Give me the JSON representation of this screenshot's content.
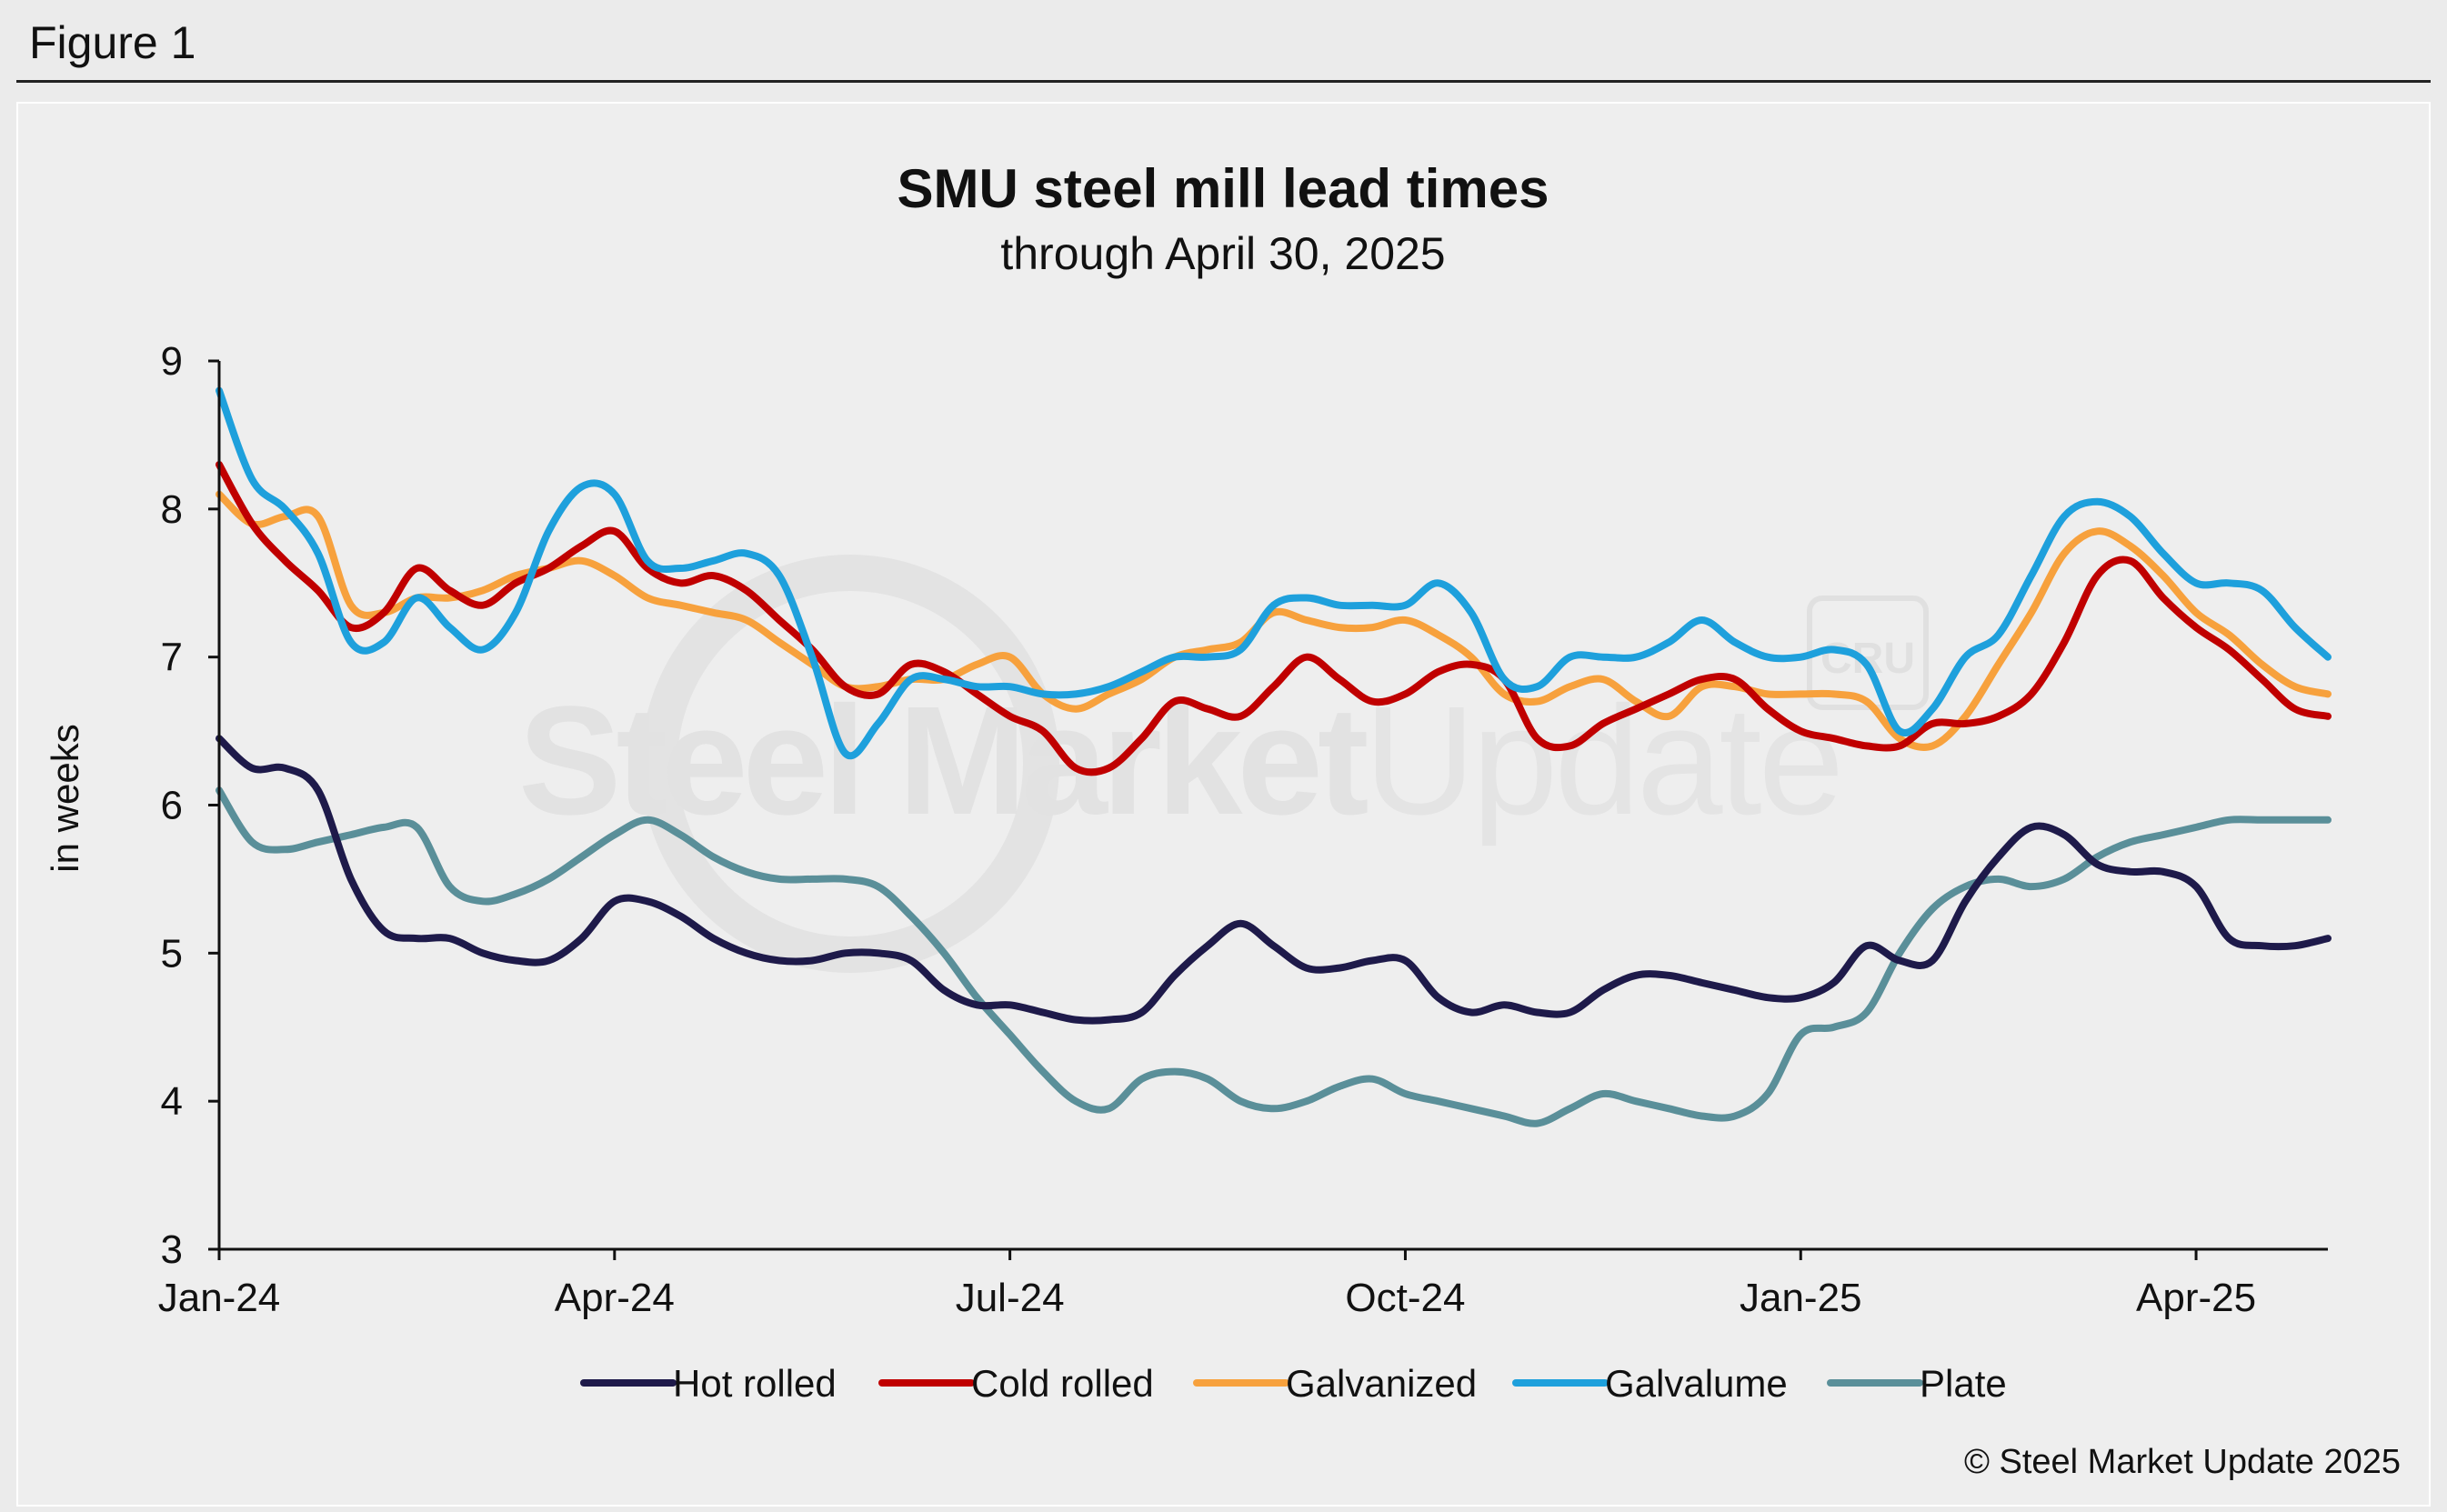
{
  "figure_label": "Figure 1",
  "watermark": {
    "brand_bold": "Steel Market",
    "brand_light": "Update",
    "badge": "CRU"
  },
  "copyright": "© Steel Market Update 2025",
  "chart_data": {
    "type": "line",
    "title": "SMU steel mill lead times",
    "subtitle": "through April 30, 2025",
    "xlabel": "",
    "ylabel": "in weeks",
    "ylim": [
      3,
      9
    ],
    "yticks": [
      3,
      4,
      5,
      6,
      7,
      8,
      9
    ],
    "xlim": [
      0,
      16
    ],
    "xtick_positions": [
      0,
      3,
      6,
      9,
      12,
      15
    ],
    "xtick_labels": [
      "Jan-24",
      "Apr-24",
      "Jul-24",
      "Oct-24",
      "Jan-25",
      "Apr-25"
    ],
    "x_units": "months since Jan 2024",
    "grid": false,
    "legend_position": "bottom",
    "series": [
      {
        "name": "Hot rolled",
        "color": "#1e1a4a",
        "x": [
          0,
          0.25,
          0.5,
          0.75,
          1,
          1.25,
          1.5,
          1.75,
          2,
          2.25,
          2.5,
          2.75,
          3,
          3.25,
          3.5,
          3.75,
          4,
          4.25,
          4.5,
          4.75,
          5,
          5.25,
          5.5,
          5.75,
          6,
          6.25,
          6.5,
          6.75,
          7,
          7.25,
          7.5,
          7.75,
          8,
          8.25,
          8.5,
          8.75,
          9,
          9.25,
          9.5,
          9.75,
          10,
          10.25,
          10.5,
          10.75,
          11,
          11.25,
          11.5,
          11.75,
          12,
          12.25,
          12.5,
          12.75,
          13,
          13.25,
          13.5,
          13.75,
          14,
          14.25,
          14.5,
          14.75,
          15,
          15.25,
          15.5,
          15.75,
          16
        ],
        "values": [
          6.45,
          6.25,
          6.25,
          6.1,
          5.5,
          5.15,
          5.1,
          5.1,
          5.0,
          4.95,
          4.95,
          5.1,
          5.35,
          5.35,
          5.25,
          5.1,
          5.0,
          4.95,
          4.95,
          5.0,
          5.0,
          4.95,
          4.75,
          4.65,
          4.65,
          4.6,
          4.55,
          4.55,
          4.6,
          4.85,
          5.05,
          5.2,
          5.05,
          4.9,
          4.9,
          4.95,
          4.95,
          4.7,
          4.6,
          4.65,
          4.6,
          4.6,
          4.75,
          4.85,
          4.85,
          4.8,
          4.75,
          4.7,
          4.7,
          4.8,
          5.05,
          4.95,
          4.95,
          5.35,
          5.65,
          5.85,
          5.8,
          5.6,
          5.55,
          5.55,
          5.45,
          5.1,
          5.05,
          5.05,
          5.1
        ]
      },
      {
        "name": "Cold rolled",
        "color": "#c00000",
        "x": [
          0,
          0.25,
          0.5,
          0.75,
          1,
          1.25,
          1.5,
          1.75,
          2,
          2.25,
          2.5,
          2.75,
          3,
          3.25,
          3.5,
          3.75,
          4,
          4.25,
          4.5,
          4.75,
          5,
          5.25,
          5.5,
          5.75,
          6,
          6.25,
          6.5,
          6.75,
          7,
          7.25,
          7.5,
          7.75,
          8,
          8.25,
          8.5,
          8.75,
          9,
          9.25,
          9.5,
          9.75,
          10,
          10.25,
          10.5,
          10.75,
          11,
          11.25,
          11.5,
          11.75,
          12,
          12.25,
          12.5,
          12.75,
          13,
          13.25,
          13.5,
          13.75,
          14,
          14.25,
          14.5,
          14.75,
          15,
          15.25,
          15.5,
          15.75,
          16
        ],
        "values": [
          8.3,
          7.9,
          7.65,
          7.45,
          7.2,
          7.3,
          7.6,
          7.45,
          7.35,
          7.5,
          7.6,
          7.75,
          7.85,
          7.6,
          7.5,
          7.55,
          7.45,
          7.25,
          7.05,
          6.8,
          6.75,
          6.95,
          6.9,
          6.75,
          6.6,
          6.5,
          6.25,
          6.25,
          6.45,
          6.7,
          6.65,
          6.6,
          6.8,
          7.0,
          6.85,
          6.7,
          6.75,
          6.9,
          6.95,
          6.85,
          6.45,
          6.4,
          6.55,
          6.65,
          6.75,
          6.85,
          6.85,
          6.65,
          6.5,
          6.45,
          6.4,
          6.4,
          6.55,
          6.55,
          6.6,
          6.75,
          7.1,
          7.55,
          7.65,
          7.4,
          7.2,
          7.05,
          6.85,
          6.65,
          6.6
        ]
      },
      {
        "name": "Galvanized",
        "color": "#f7a13d",
        "x": [
          0,
          0.25,
          0.5,
          0.75,
          1,
          1.25,
          1.5,
          1.75,
          2,
          2.25,
          2.5,
          2.75,
          3,
          3.25,
          3.5,
          3.75,
          4,
          4.25,
          4.5,
          4.75,
          5,
          5.25,
          5.5,
          5.75,
          6,
          6.25,
          6.5,
          6.75,
          7,
          7.25,
          7.5,
          7.75,
          8,
          8.25,
          8.5,
          8.75,
          9,
          9.25,
          9.5,
          9.75,
          10,
          10.25,
          10.5,
          10.75,
          11,
          11.25,
          11.5,
          11.75,
          12,
          12.25,
          12.5,
          12.75,
          13,
          13.25,
          13.5,
          13.75,
          14,
          14.25,
          14.5,
          14.75,
          15,
          15.25,
          15.5,
          15.75,
          16
        ],
        "values": [
          8.1,
          7.9,
          7.95,
          7.95,
          7.35,
          7.3,
          7.4,
          7.4,
          7.45,
          7.55,
          7.6,
          7.65,
          7.55,
          7.4,
          7.35,
          7.3,
          7.25,
          7.1,
          6.95,
          6.8,
          6.8,
          6.85,
          6.85,
          6.95,
          7.0,
          6.75,
          6.65,
          6.75,
          6.85,
          7.0,
          7.05,
          7.1,
          7.3,
          7.25,
          7.2,
          7.2,
          7.25,
          7.15,
          7.0,
          6.75,
          6.7,
          6.8,
          6.85,
          6.7,
          6.6,
          6.8,
          6.8,
          6.75,
          6.75,
          6.75,
          6.7,
          6.45,
          6.4,
          6.6,
          6.95,
          7.3,
          7.7,
          7.85,
          7.75,
          7.55,
          7.3,
          7.15,
          6.95,
          6.8,
          6.75
        ]
      },
      {
        "name": "Galvalume",
        "color": "#1ea0dc",
        "x": [
          0,
          0.25,
          0.5,
          0.75,
          1,
          1.25,
          1.5,
          1.75,
          2,
          2.25,
          2.5,
          2.75,
          3,
          3.25,
          3.5,
          3.75,
          4,
          4.25,
          4.5,
          4.75,
          5,
          5.25,
          5.5,
          5.75,
          6,
          6.25,
          6.5,
          6.75,
          7,
          7.25,
          7.5,
          7.75,
          8,
          8.25,
          8.5,
          8.75,
          9,
          9.25,
          9.5,
          9.75,
          10,
          10.25,
          10.5,
          10.75,
          11,
          11.25,
          11.5,
          11.75,
          12,
          12.25,
          12.5,
          12.75,
          13,
          13.25,
          13.5,
          13.75,
          14,
          14.25,
          14.5,
          14.75,
          15,
          15.25,
          15.5,
          15.75,
          16
        ],
        "values": [
          8.8,
          8.2,
          8.0,
          7.7,
          7.1,
          7.1,
          7.4,
          7.2,
          7.05,
          7.3,
          7.85,
          8.15,
          8.1,
          7.65,
          7.6,
          7.65,
          7.7,
          7.55,
          7.0,
          6.35,
          6.55,
          6.85,
          6.85,
          6.8,
          6.8,
          6.75,
          6.75,
          6.8,
          6.9,
          7.0,
          7.0,
          7.05,
          7.35,
          7.4,
          7.35,
          7.35,
          7.35,
          7.5,
          7.3,
          6.85,
          6.8,
          7.0,
          7.0,
          7.0,
          7.1,
          7.25,
          7.1,
          7.0,
          7.0,
          7.05,
          6.95,
          6.5,
          6.65,
          7.0,
          7.15,
          7.55,
          7.95,
          8.05,
          7.95,
          7.7,
          7.5,
          7.5,
          7.45,
          7.2,
          7.0
        ]
      },
      {
        "name": "Plate",
        "color": "#5a8f99",
        "x": [
          0,
          0.25,
          0.5,
          0.75,
          1,
          1.25,
          1.5,
          1.75,
          2,
          2.25,
          2.5,
          2.75,
          3,
          3.25,
          3.5,
          3.75,
          4,
          4.25,
          4.5,
          4.75,
          5,
          5.25,
          5.5,
          5.75,
          6,
          6.25,
          6.5,
          6.75,
          7,
          7.25,
          7.5,
          7.75,
          8,
          8.25,
          8.5,
          8.75,
          9,
          9.25,
          9.5,
          9.75,
          10,
          10.25,
          10.5,
          10.75,
          11,
          11.25,
          11.5,
          11.75,
          12,
          12.25,
          12.5,
          12.75,
          13,
          13.25,
          13.5,
          13.75,
          14,
          14.25,
          14.5,
          14.75,
          15,
          15.25,
          15.5,
          15.75,
          16
        ],
        "values": [
          6.1,
          5.75,
          5.7,
          5.75,
          5.8,
          5.85,
          5.85,
          5.45,
          5.35,
          5.4,
          5.5,
          5.65,
          5.8,
          5.9,
          5.8,
          5.65,
          5.55,
          5.5,
          5.5,
          5.5,
          5.45,
          5.25,
          5.0,
          4.7,
          4.45,
          4.2,
          4.0,
          3.95,
          4.15,
          4.2,
          4.15,
          4.0,
          3.95,
          4.0,
          4.1,
          4.15,
          4.05,
          4.0,
          3.95,
          3.9,
          3.85,
          3.95,
          4.05,
          4.0,
          3.95,
          3.9,
          3.9,
          4.05,
          4.45,
          4.5,
          4.6,
          5.0,
          5.3,
          5.45,
          5.5,
          5.45,
          5.5,
          5.65,
          5.75,
          5.8,
          5.85,
          5.9,
          5.9,
          5.9,
          5.9
        ]
      }
    ]
  }
}
